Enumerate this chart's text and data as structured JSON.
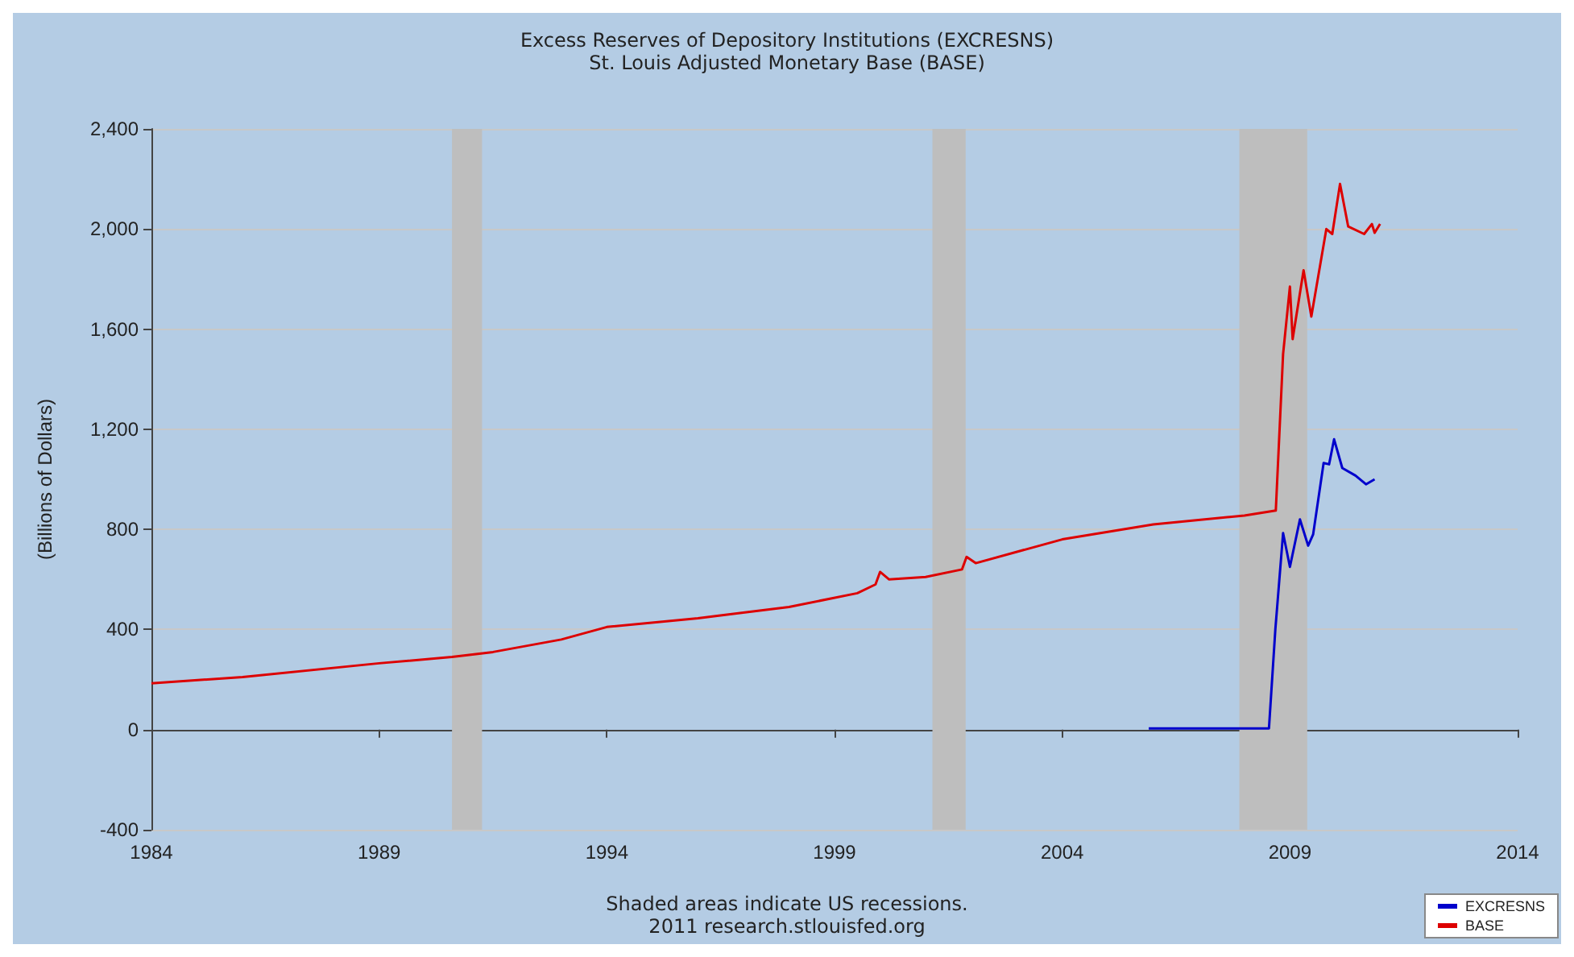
{
  "chart_data": {
    "type": "line",
    "title": "Excess Reserves of Depository Institutions (EXCRESNS)",
    "subtitle": "St. Louis Adjusted Monetary Base (BASE)",
    "ylabel": "(Billions of Dollars)",
    "annotations": [
      "Shaded areas indicate US recessions.",
      "2011 research.stlouisfed.org"
    ],
    "series": [
      {
        "name": "EXCRESNS",
        "color": "#0000cc",
        "x": [
          2005.9,
          2008.54,
          2008.68,
          2008.85,
          2009.0,
          2009.22,
          2009.4,
          2009.51,
          2009.74,
          2009.86,
          2009.97,
          2010.15,
          2010.44,
          2010.67,
          2010.86
        ],
        "values": [
          5,
          5,
          400,
          785,
          650,
          840,
          735,
          780,
          1065,
          1060,
          1160,
          1045,
          1015,
          980,
          1000
        ]
      },
      {
        "name": "BASE",
        "color": "#dd0000",
        "x": [
          1984,
          1986,
          1989,
          1990.6,
          1991.5,
          1993,
          1994,
          1996,
          1998,
          1999.5,
          1999.9,
          2000.0,
          2000.2,
          2001,
          2001.8,
          2001.9,
          2002.1,
          2004,
          2006,
          2008,
          2008.69,
          2008.85,
          2009.0,
          2009.06,
          2009.3,
          2009.47,
          2009.8,
          2009.93,
          2010.1,
          2010.28,
          2010.63,
          2010.8,
          2010.86,
          2010.98
        ],
        "values": [
          185,
          210,
          265,
          290,
          310,
          360,
          410,
          445,
          490,
          545,
          580,
          630,
          600,
          610,
          640,
          690,
          665,
          760,
          820,
          855,
          875,
          1500,
          1770,
          1560,
          1835,
          1650,
          2000,
          1980,
          2180,
          2010,
          1980,
          2020,
          1985,
          2020
        ]
      }
    ],
    "xlim": [
      1984,
      2014
    ],
    "xticks": [
      1984,
      1989,
      1994,
      1999,
      2004,
      2009,
      2014
    ],
    "ylim": [
      -400,
      2400
    ],
    "yticks": [
      {
        "value": -400,
        "label": "-400"
      },
      {
        "value": 0,
        "label": "0"
      },
      {
        "value": 400,
        "label": "400"
      },
      {
        "value": 800,
        "label": "800"
      },
      {
        "value": 1200,
        "label": "1,200"
      },
      {
        "value": 1600,
        "label": "1,600"
      },
      {
        "value": 2000,
        "label": "2,000"
      },
      {
        "value": 2400,
        "label": "2,400"
      }
    ],
    "bands": [
      {
        "axis": "x",
        "from": 1990.6,
        "to": 1991.26,
        "color": "#bebebe"
      },
      {
        "axis": "x",
        "from": 2001.15,
        "to": 2001.88,
        "color": "#bebebe"
      },
      {
        "axis": "x",
        "from": 2007.89,
        "to": 2009.38,
        "color": "#bebebe"
      }
    ],
    "grid": "y",
    "legend": "bottom right",
    "line_style": "solid"
  }
}
